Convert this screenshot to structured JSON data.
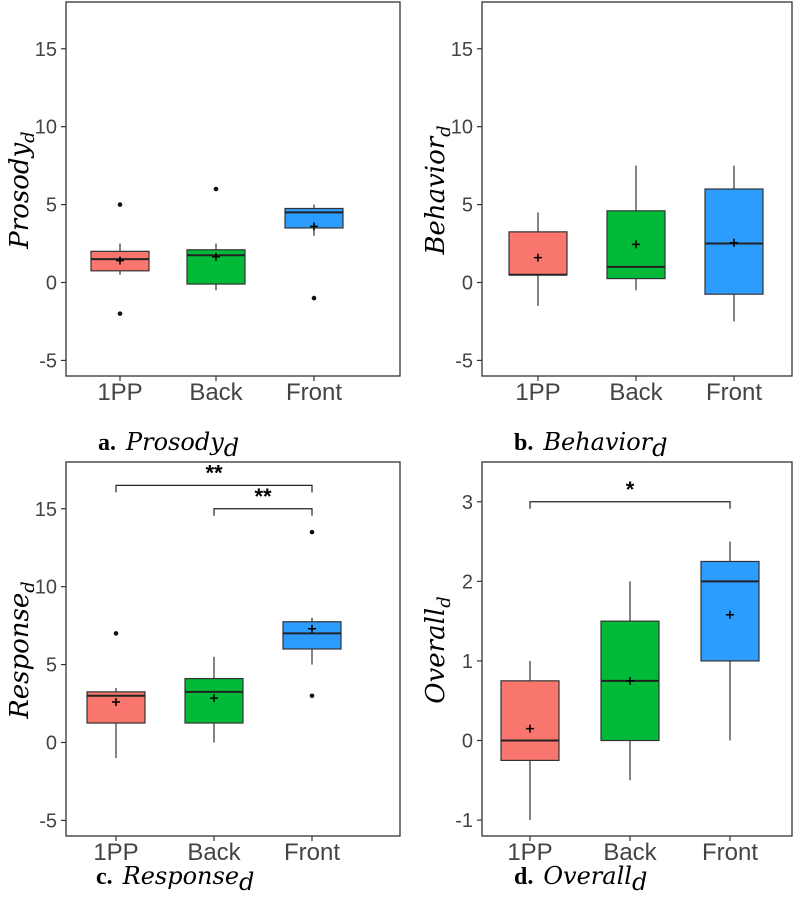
{
  "chart_data": [
    {
      "type": "box",
      "panel": "a.",
      "title_base": "Prosody",
      "title_sub": "d",
      "ylabel_base": "Prosody",
      "ylabel_sub": "d",
      "categories": [
        "1PP",
        "Back",
        "Front"
      ],
      "ylim": [
        -6,
        18
      ],
      "yticks": [
        -5,
        0,
        5,
        10,
        15
      ],
      "ytick_labels": [
        "-5",
        "0",
        "5",
        "10",
        "15"
      ],
      "boxes": [
        {
          "name": "1PP",
          "color": "#f8766d",
          "whisker_low": 0.5,
          "q1": 0.75,
          "median": 1.5,
          "q3": 2.0,
          "whisker_high": 2.5,
          "mean": 1.4,
          "outliers": [
            5,
            -2
          ]
        },
        {
          "name": "Back",
          "color": "#00ba38",
          "whisker_low": -0.5,
          "q1": -0.1,
          "median": 1.75,
          "q3": 2.1,
          "whisker_high": 2.5,
          "mean": 1.65,
          "outliers": [
            6
          ]
        },
        {
          "name": "Front",
          "color": "#2d9cff",
          "whisker_low": 3.0,
          "q1": 3.5,
          "median": 4.5,
          "q3": 4.75,
          "whisker_high": 5.0,
          "mean": 3.6,
          "outliers": [
            -1
          ]
        }
      ],
      "significance": []
    },
    {
      "type": "box",
      "panel": "b.",
      "title_base": "Behavior",
      "title_sub": "d",
      "ylabel_base": "Behavior",
      "ylabel_sub": "d",
      "categories": [
        "1PP",
        "Back",
        "Front"
      ],
      "ylim": [
        -6,
        18
      ],
      "yticks": [
        -5,
        0,
        5,
        10,
        15
      ],
      "ytick_labels": [
        "-5",
        "0",
        "5",
        "10",
        "15"
      ],
      "boxes": [
        {
          "name": "1PP",
          "color": "#f8766d",
          "whisker_low": -1.5,
          "q1": 0.5,
          "median": 0.5,
          "q3": 3.25,
          "whisker_high": 4.5,
          "mean": 1.6,
          "outliers": []
        },
        {
          "name": "Back",
          "color": "#00ba38",
          "whisker_low": -0.5,
          "q1": 0.25,
          "median": 1.0,
          "q3": 4.6,
          "whisker_high": 7.5,
          "mean": 2.45,
          "outliers": []
        },
        {
          "name": "Front",
          "color": "#2d9cff",
          "whisker_low": -2.5,
          "q1": -0.75,
          "median": 2.5,
          "q3": 6.0,
          "whisker_high": 7.5,
          "mean": 2.55,
          "outliers": []
        }
      ],
      "significance": []
    },
    {
      "type": "box",
      "panel": "c.",
      "title_base": "Response",
      "title_sub": "d",
      "ylabel_base": "Response",
      "ylabel_sub": "d",
      "categories": [
        "1PP",
        "Back",
        "Front"
      ],
      "ylim": [
        -6,
        18
      ],
      "yticks": [
        -5,
        0,
        5,
        10,
        15
      ],
      "ytick_labels": [
        "-5",
        "0",
        "5",
        "10",
        "15"
      ],
      "boxes": [
        {
          "name": "1PP",
          "color": "#f8766d",
          "whisker_low": -1.0,
          "q1": 1.25,
          "median": 3.0,
          "q3": 3.25,
          "whisker_high": 3.5,
          "mean": 2.6,
          "outliers": [
            7
          ]
        },
        {
          "name": "Back",
          "color": "#00ba38",
          "whisker_low": 0.0,
          "q1": 1.25,
          "median": 3.25,
          "q3": 4.1,
          "whisker_high": 5.5,
          "mean": 2.85,
          "outliers": []
        },
        {
          "name": "Front",
          "color": "#2d9cff",
          "whisker_low": 5.0,
          "q1": 6.0,
          "median": 7.0,
          "q3": 7.75,
          "whisker_high": 8.0,
          "mean": 7.3,
          "outliers": [
            13.5,
            3
          ]
        }
      ],
      "significance": [
        {
          "from": 0,
          "to": 2,
          "y": 16.5,
          "label": "**"
        },
        {
          "from": 1,
          "to": 2,
          "y": 15.0,
          "label": "**"
        }
      ]
    },
    {
      "type": "box",
      "panel": "d.",
      "title_base": "Overall",
      "title_sub": "d",
      "ylabel_base": "Overall",
      "ylabel_sub": "d",
      "categories": [
        "1PP",
        "Back",
        "Front"
      ],
      "ylim": [
        -1.2,
        3.5
      ],
      "yticks": [
        -1,
        0,
        1,
        2,
        3
      ],
      "ytick_labels": [
        "-1",
        "0",
        "1",
        "2",
        "3"
      ],
      "boxes": [
        {
          "name": "1PP",
          "color": "#f8766d",
          "whisker_low": -1.0,
          "q1": -0.25,
          "median": 0.0,
          "q3": 0.75,
          "whisker_high": 1.0,
          "mean": 0.15,
          "outliers": []
        },
        {
          "name": "Back",
          "color": "#00ba38",
          "whisker_low": -0.5,
          "q1": 0.0,
          "median": 0.75,
          "q3": 1.5,
          "whisker_high": 2.0,
          "mean": 0.75,
          "outliers": []
        },
        {
          "name": "Front",
          "color": "#2d9cff",
          "whisker_low": 0.0,
          "q1": 1.0,
          "median": 2.0,
          "q3": 2.25,
          "whisker_high": 2.5,
          "mean": 1.58,
          "outliers": []
        }
      ],
      "significance": [
        {
          "from": 0,
          "to": 2,
          "y": 3.0,
          "label": "*"
        }
      ]
    }
  ]
}
